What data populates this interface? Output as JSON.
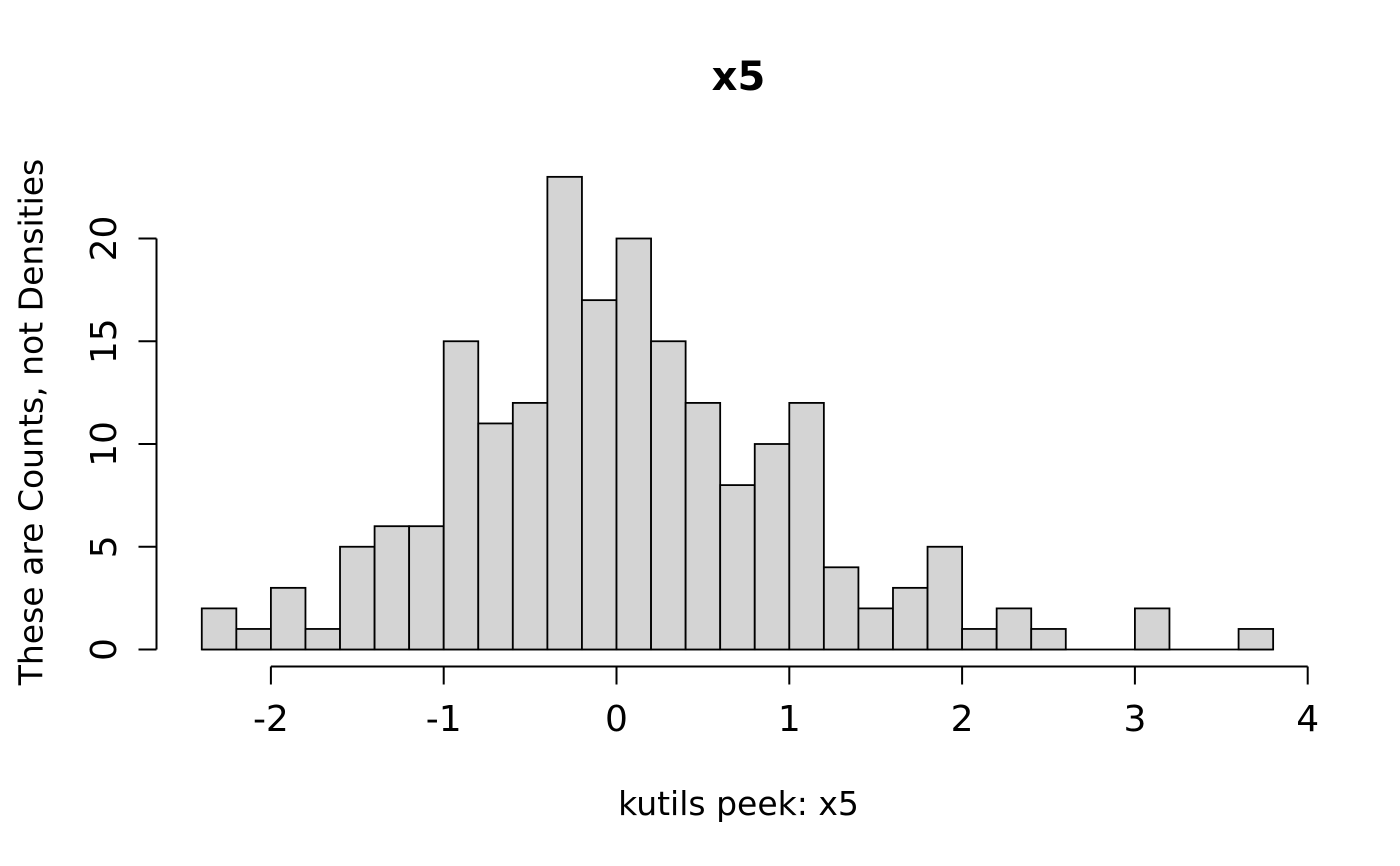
{
  "chart_data": {
    "type": "bar",
    "subtype": "histogram",
    "title": "x5",
    "xlabel": "kutils peek: x5",
    "ylabel": "These are Counts, not Densities",
    "bin_start": -2.4,
    "bin_width": 0.2,
    "counts": [
      2,
      1,
      3,
      1,
      5,
      6,
      6,
      15,
      11,
      12,
      23,
      17,
      20,
      15,
      12,
      8,
      10,
      12,
      4,
      2,
      3,
      5,
      1,
      2,
      1,
      0,
      0,
      2,
      0,
      0,
      1
    ],
    "x_ticks": [
      -2,
      -1,
      0,
      1,
      2,
      3,
      4
    ],
    "y_ticks": [
      0,
      5,
      10,
      15,
      20
    ],
    "xlim": [
      -2.4,
      4
    ],
    "ylim": [
      0,
      23
    ],
    "grid": false,
    "legend": null,
    "bar_fill": "#d4d4d4",
    "bar_stroke": "#000000",
    "axis_color": "#000000",
    "text_color": "#000000"
  }
}
